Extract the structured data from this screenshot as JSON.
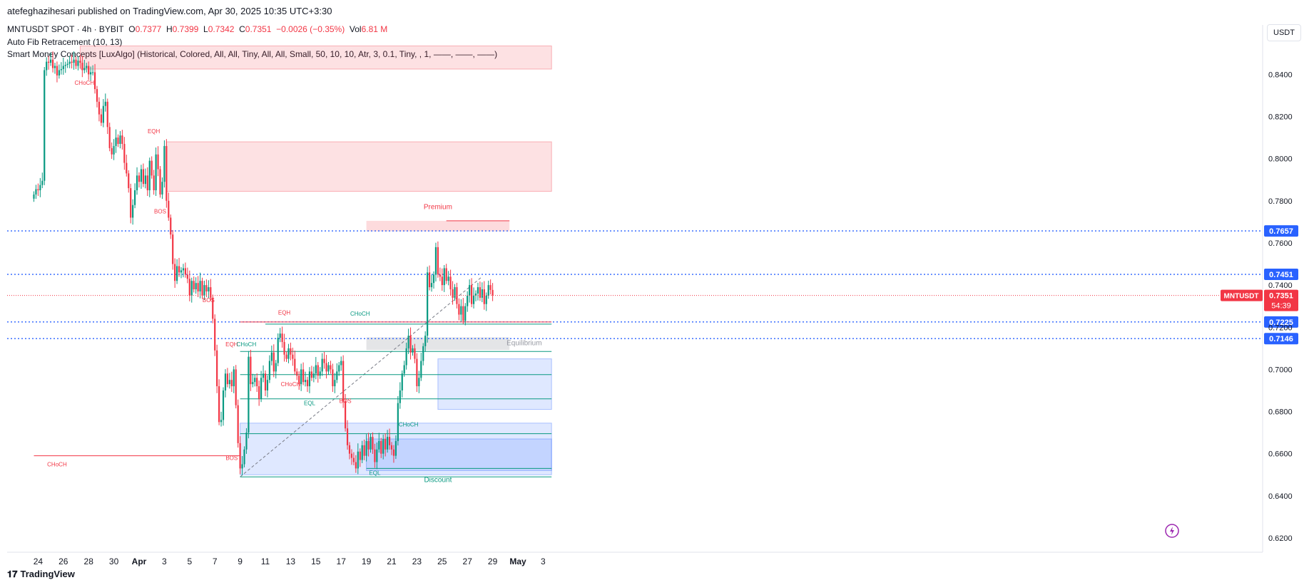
{
  "header": {
    "published": "atefeghazihesari published on TradingView.com, Apr 30, 2025 10:35 UTC+3:30",
    "symbol": "MNTUSDT SPOT · 4h · BYBIT",
    "open_k": "O",
    "open": "0.7377",
    "high_k": "H",
    "high": "0.7399",
    "low_k": "L",
    "low": "0.7342",
    "close_k": "C",
    "close": "0.7351",
    "change": "−0.0026 (−0.35%)",
    "vol_k": "Vol",
    "vol": "6.81 M",
    "indicator1": "Auto Fib Retracement (10, 13)",
    "indicator2": "Smart Money Concepts [LuxAlgo] (Historical, Colored, All, All, Tiny, All, All, Small, 50, 10, 10, Atr, 3, 0.1, Tiny, , 1, ——, ——, ——)"
  },
  "currency_button": "USDT",
  "watermark": "TradingView",
  "colors": {
    "up": "#089981",
    "down": "#f23645",
    "fib": "#2962ff",
    "premium": "#f23645",
    "discount": "#2962ff"
  },
  "chart_data": {
    "type": "candlestick",
    "title": "MNTUSDT SPOT · 4h · BYBIT",
    "ylim": [
      0.62,
      0.855
    ],
    "y_ticks": [
      "0.8400",
      "0.8200",
      "0.8000",
      "0.7800",
      "0.7600",
      "0.7400",
      "0.7200",
      "0.7000",
      "0.6800",
      "0.6600",
      "0.6400",
      "0.6200"
    ],
    "x_ticks": [
      {
        "label": "24",
        "idx": 2
      },
      {
        "label": "26",
        "idx": 14
      },
      {
        "label": "28",
        "idx": 26
      },
      {
        "label": "30",
        "idx": 38
      },
      {
        "label": "Apr",
        "idx": 50
      },
      {
        "label": "3",
        "idx": 62
      },
      {
        "label": "5",
        "idx": 74
      },
      {
        "label": "7",
        "idx": 86
      },
      {
        "label": "9",
        "idx": 98
      },
      {
        "label": "11",
        "idx": 110
      },
      {
        "label": "13",
        "idx": 122
      },
      {
        "label": "15",
        "idx": 134
      },
      {
        "label": "17",
        "idx": 146
      },
      {
        "label": "19",
        "idx": 158
      },
      {
        "label": "21",
        "idx": 170
      },
      {
        "label": "23",
        "idx": 182
      },
      {
        "label": "25",
        "idx": 194
      },
      {
        "label": "27",
        "idx": 206
      },
      {
        "label": "29",
        "idx": 218
      },
      {
        "label": "May",
        "idx": 230
      },
      {
        "label": "3",
        "idx": 242
      }
    ],
    "fib_levels": [
      {
        "label": "0.7657",
        "value": 0.7657
      },
      {
        "label": "0.7451",
        "value": 0.7451
      },
      {
        "label": "0.7225",
        "value": 0.7225
      },
      {
        "label": "0.7146",
        "value": 0.7146
      }
    ],
    "last_price": {
      "symbol": "MNTUSDT",
      "value": 0.7351,
      "price": "0.7351",
      "countdown": "54:39"
    },
    "zones": [
      {
        "kind": "supply",
        "from_idx": 22,
        "to_idx": 246,
        "low": 0.8425,
        "high": 0.8535
      },
      {
        "kind": "supply",
        "from_idx": 63,
        "to_idx": 246,
        "low": 0.7845,
        "high": 0.808
      },
      {
        "kind": "premium",
        "from_idx": 158,
        "to_idx": 226,
        "low": 0.7655,
        "high": 0.7705
      },
      {
        "kind": "equilibrium",
        "from_idx": 158,
        "to_idx": 226,
        "low": 0.7092,
        "high": 0.7152
      },
      {
        "kind": "demand",
        "from_idx": 98,
        "to_idx": 246,
        "low": 0.65,
        "high": 0.6745
      },
      {
        "kind": "demand",
        "from_idx": 158,
        "to_idx": 246,
        "low": 0.652,
        "high": 0.667
      },
      {
        "kind": "demand",
        "from_idx": 192,
        "to_idx": 246,
        "low": 0.681,
        "high": 0.705
      }
    ],
    "labels": [
      {
        "text": "CHoCH",
        "idx": 24,
        "value": 0.835,
        "color": "down"
      },
      {
        "text": "EQH",
        "idx": 57,
        "value": 0.812,
        "color": "down"
      },
      {
        "text": "BOS",
        "idx": 60,
        "value": 0.774,
        "color": "down"
      },
      {
        "text": "BOS",
        "idx": 83,
        "value": 0.732,
        "color": "down"
      },
      {
        "text": "EQH",
        "idx": 94,
        "value": 0.711,
        "color": "down"
      },
      {
        "text": "CHoCH",
        "idx": 101,
        "value": 0.711,
        "color": "up"
      },
      {
        "text": "BOS",
        "idx": 94,
        "value": 0.657,
        "color": "down"
      },
      {
        "text": "CHoCH",
        "idx": 11,
        "value": 0.654,
        "color": "down"
      },
      {
        "text": "EQH",
        "idx": 119,
        "value": 0.726,
        "color": "down"
      },
      {
        "text": "CHoCH",
        "idx": 122,
        "value": 0.692,
        "color": "down"
      },
      {
        "text": "EQL",
        "idx": 131,
        "value": 0.683,
        "color": "up"
      },
      {
        "text": "BOS",
        "idx": 148,
        "value": 0.684,
        "color": "down"
      },
      {
        "text": "CHoCH",
        "idx": 155,
        "value": 0.7255,
        "color": "up"
      },
      {
        "text": "CHoCH",
        "idx": 178,
        "value": 0.673,
        "color": "up"
      },
      {
        "text": "EQL",
        "idx": 162,
        "value": 0.65,
        "color": "up"
      },
      {
        "text": "Premium",
        "idx": 192,
        "value": 0.776,
        "color": "down"
      },
      {
        "text": "Equilibrium",
        "idx": 233,
        "value": 0.7115,
        "color": "neutral"
      },
      {
        "text": "Discount",
        "idx": 192,
        "value": 0.6465,
        "color": "up"
      }
    ],
    "close": [
      0.783,
      0.7855,
      0.785,
      0.7875,
      0.7895,
      0.842,
      0.846,
      0.8455,
      0.847,
      0.843,
      0.844,
      0.8395,
      0.842,
      0.8425,
      0.844,
      0.8445,
      0.845,
      0.846,
      0.8455,
      0.847,
      0.844,
      0.8465,
      0.8455,
      0.842,
      0.843,
      0.844,
      0.84,
      0.841,
      0.841,
      0.833,
      0.827,
      0.821,
      0.817,
      0.825,
      0.827,
      0.815,
      0.805,
      0.802,
      0.806,
      0.81,
      0.807,
      0.811,
      0.807,
      0.798,
      0.793,
      0.786,
      0.772,
      0.778,
      0.785,
      0.792,
      0.789,
      0.795,
      0.788,
      0.792,
      0.785,
      0.799,
      0.792,
      0.785,
      0.802,
      0.795,
      0.783,
      0.789,
      0.806,
      0.78,
      0.772,
      0.764,
      0.75,
      0.742,
      0.749,
      0.746,
      0.747,
      0.748,
      0.745,
      0.743,
      0.735,
      0.742,
      0.738,
      0.741,
      0.737,
      0.742,
      0.735,
      0.74,
      0.737,
      0.739,
      0.734,
      0.724,
      0.709,
      0.692,
      0.675,
      0.676,
      0.69,
      0.698,
      0.693,
      0.695,
      0.692,
      0.7,
      0.683,
      0.665,
      0.653,
      0.655,
      0.662,
      0.67,
      0.706,
      0.693,
      0.694,
      0.696,
      0.692,
      0.686,
      0.696,
      0.698,
      0.69,
      0.695,
      0.704,
      0.708,
      0.699,
      0.703,
      0.715,
      0.717,
      0.713,
      0.707,
      0.705,
      0.71,
      0.707,
      0.705,
      0.699,
      0.697,
      0.693,
      0.7,
      0.694,
      0.695,
      0.692,
      0.699,
      0.696,
      0.698,
      0.702,
      0.697,
      0.699,
      0.705,
      0.703,
      0.699,
      0.702,
      0.7,
      0.692,
      0.695,
      0.699,
      0.702,
      0.704,
      0.685,
      0.672,
      0.664,
      0.66,
      0.658,
      0.656,
      0.653,
      0.661,
      0.657,
      0.664,
      0.659,
      0.666,
      0.662,
      0.668,
      0.662,
      0.656,
      0.662,
      0.666,
      0.66,
      0.667,
      0.662,
      0.668,
      0.664,
      0.662,
      0.659,
      0.666,
      0.684,
      0.69,
      0.698,
      0.702,
      0.71,
      0.716,
      0.708,
      0.71,
      0.705,
      0.692,
      0.696,
      0.704,
      0.711,
      0.716,
      0.746,
      0.739,
      0.741,
      0.745,
      0.758,
      0.745,
      0.744,
      0.74,
      0.748,
      0.742,
      0.744,
      0.738,
      0.734,
      0.739,
      0.731,
      0.726,
      0.73,
      0.723,
      0.73,
      0.735,
      0.74,
      0.731,
      0.735,
      0.736,
      0.739,
      0.734,
      0.738,
      0.731,
      0.735,
      0.74,
      0.7377,
      0.7351
    ],
    "candle_count": 227
  }
}
